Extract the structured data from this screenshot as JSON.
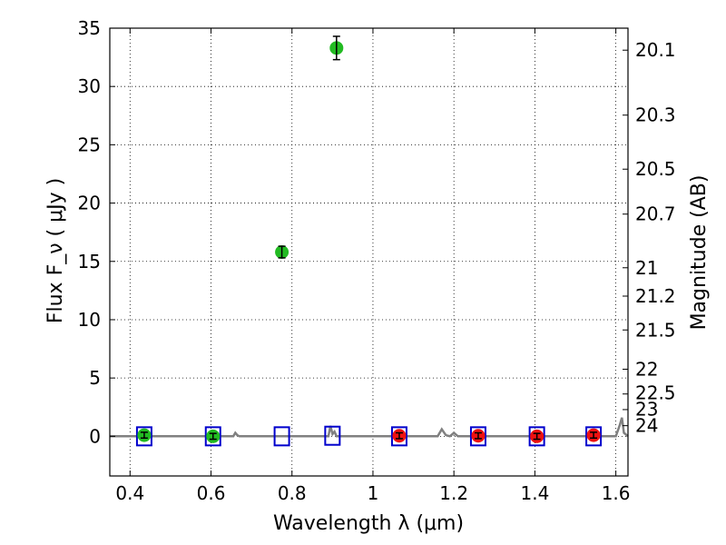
{
  "chart_data": {
    "type": "scatter",
    "title": "",
    "xlabel": "Wavelength  λ (μm)",
    "ylabel": "Flux  F_ν  ( μJy )",
    "y2label": "Magnitude (AB)",
    "xlim": [
      0.35,
      1.63
    ],
    "ylim": [
      -3.4,
      35
    ],
    "grid": true,
    "xticks": [
      0.4,
      0.6,
      0.8,
      1.0,
      1.2,
      1.4,
      1.6
    ],
    "xtick_labels": [
      "0.4",
      "0.6",
      "0.8",
      "1",
      "1.2",
      "1.4",
      "1.6"
    ],
    "yticks": [
      0,
      5,
      10,
      15,
      20,
      25,
      30,
      35
    ],
    "ytick_labels": [
      "0",
      "5",
      "10",
      "15",
      "20",
      "25",
      "30",
      "35"
    ],
    "magnitude_ticks": [
      "20.1",
      "20.3",
      "20.5",
      "20.7",
      "21",
      "21.2",
      "21.5",
      "22",
      "22.5",
      "23",
      "24"
    ],
    "colors": {
      "detection": "#22bb22",
      "upper_limit": "#ee1111",
      "model_point": "#0000cc",
      "model_spectrum": "#808080"
    },
    "series": [
      {
        "marker": "circle",
        "color": "#22bb22",
        "points": [
          {
            "x": 0.435,
            "y": 0.1,
            "err": 0.25
          },
          {
            "x": 0.605,
            "y": 0.0,
            "err": 0.25
          },
          {
            "x": 0.775,
            "y": 15.8,
            "err": 0.5
          },
          {
            "x": 0.91,
            "y": 33.3,
            "err": 1.0
          }
        ]
      },
      {
        "marker": "circle",
        "color": "#ee1111",
        "points": [
          {
            "x": 1.065,
            "y": 0.05,
            "err": 0.25
          },
          {
            "x": 1.26,
            "y": 0.05,
            "err": 0.25
          },
          {
            "x": 1.405,
            "y": 0.0,
            "err": 0.25
          },
          {
            "x": 1.545,
            "y": 0.1,
            "err": 0.25
          }
        ]
      },
      {
        "marker": "square",
        "color": "#0000cc",
        "points": [
          {
            "x": 0.435,
            "y": 0.0
          },
          {
            "x": 0.605,
            "y": 0.0
          },
          {
            "x": 0.775,
            "y": 0.0
          },
          {
            "x": 0.9,
            "y": 0.05
          },
          {
            "x": 1.065,
            "y": 0.0
          },
          {
            "x": 1.26,
            "y": 0.0
          },
          {
            "x": 1.405,
            "y": 0.0
          },
          {
            "x": 1.545,
            "y": 0.0
          }
        ]
      },
      {
        "marker": "line",
        "color": "#808080",
        "x": [
          0.35,
          0.655,
          0.66,
          0.665,
          0.67,
          0.89,
          0.895,
          0.9,
          0.905,
          0.91,
          1.16,
          1.17,
          1.18,
          1.19,
          1.2,
          1.21,
          1.22,
          1.6,
          1.61,
          1.615,
          1.62,
          1.63
        ],
        "y": [
          0.0,
          0.0,
          0.3,
          0.1,
          0.0,
          0.0,
          0.9,
          0.2,
          0.4,
          0.0,
          0.0,
          0.6,
          0.1,
          0.0,
          0.3,
          0.0,
          0.0,
          0.0,
          1.0,
          1.6,
          0.3,
          0.0
        ]
      }
    ]
  }
}
